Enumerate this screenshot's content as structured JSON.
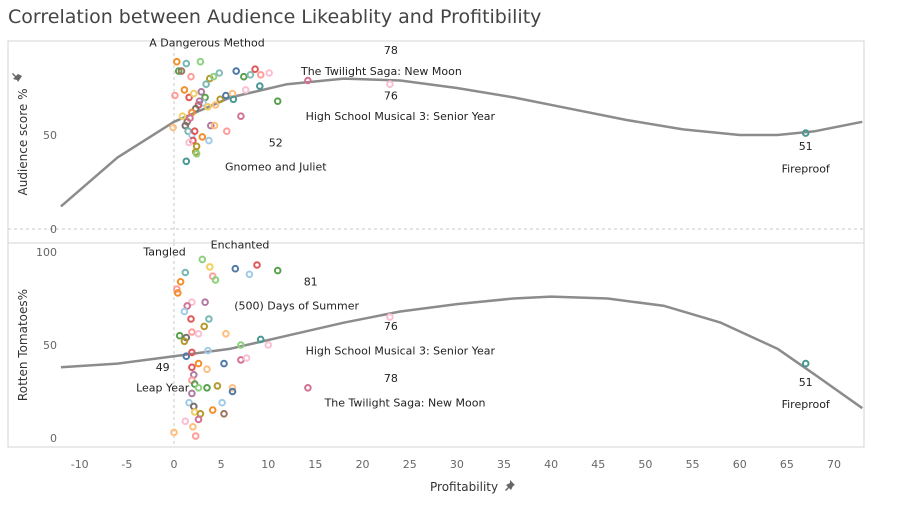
{
  "title": "Correlation between Audience Likeablity and Profitibility",
  "x_axis": {
    "label": "Profitability",
    "pin_icon": "pin-icon"
  },
  "chart_data": [
    {
      "type": "scatter",
      "panel": "top",
      "ylabel": "Audience  score %",
      "xlim": [
        -12,
        73
      ],
      "ylim": [
        -10,
        100
      ],
      "x_ticks": [
        -10,
        -5,
        0,
        5,
        10,
        15,
        20,
        25,
        30,
        35,
        40,
        45,
        50,
        55,
        60,
        65,
        70
      ],
      "y_ticks": [
        0,
        50
      ],
      "trend_curve": [
        {
          "x": -12,
          "y": 12
        },
        {
          "x": -6,
          "y": 38
        },
        {
          "x": 0,
          "y": 57
        },
        {
          "x": 6,
          "y": 70
        },
        {
          "x": 12,
          "y": 77
        },
        {
          "x": 18,
          "y": 80
        },
        {
          "x": 24,
          "y": 79
        },
        {
          "x": 30,
          "y": 75
        },
        {
          "x": 36,
          "y": 70
        },
        {
          "x": 42,
          "y": 64
        },
        {
          "x": 48,
          "y": 58
        },
        {
          "x": 54,
          "y": 53
        },
        {
          "x": 60,
          "y": 50
        },
        {
          "x": 64,
          "y": 50
        },
        {
          "x": 68,
          "y": 52
        },
        {
          "x": 73,
          "y": 57
        }
      ],
      "points": [
        {
          "x": 0.3,
          "y": 89,
          "c": "#f28e2b"
        },
        {
          "x": 0.5,
          "y": 84,
          "c": "#59a14f"
        },
        {
          "x": 1.3,
          "y": 88,
          "c": "#76b7b2"
        },
        {
          "x": 2.8,
          "y": 89,
          "c": "#8cd17d"
        },
        {
          "x": 0.8,
          "y": 84,
          "c": "#9d7660"
        },
        {
          "x": 1.8,
          "y": 81,
          "c": "#ff9d9a"
        },
        {
          "x": 3.8,
          "y": 80,
          "c": "#b6992d"
        },
        {
          "x": 4.2,
          "y": 81,
          "c": "#8cd17d"
        },
        {
          "x": 4.8,
          "y": 83,
          "c": "#86bcb6"
        },
        {
          "x": 3.4,
          "y": 77,
          "c": "#76b7b2"
        },
        {
          "x": 6.6,
          "y": 84,
          "c": "#4e79a7"
        },
        {
          "x": 7.4,
          "y": 81,
          "c": "#59a14f"
        },
        {
          "x": 8.1,
          "y": 82,
          "c": "#86bcb6"
        },
        {
          "x": 8.6,
          "y": 85,
          "c": "#e15759"
        },
        {
          "x": 9.2,
          "y": 82,
          "c": "#ff9d9a"
        },
        {
          "x": 10.1,
          "y": 83,
          "c": "#fabfd2"
        },
        {
          "x": 1.1,
          "y": 74,
          "c": "#f28e2b"
        },
        {
          "x": 1.6,
          "y": 70,
          "c": "#e15759"
        },
        {
          "x": 2.1,
          "y": 72,
          "c": "#f1ce63"
        },
        {
          "x": 2.9,
          "y": 73,
          "c": "#b07aa1"
        },
        {
          "x": 3.3,
          "y": 70,
          "c": "#59a14f"
        },
        {
          "x": 3.1,
          "y": 67,
          "c": "#a0cbe8"
        },
        {
          "x": 2.6,
          "y": 66,
          "c": "#e15759"
        },
        {
          "x": 2.3,
          "y": 64,
          "c": "#79706e"
        },
        {
          "x": 1.9,
          "y": 62,
          "c": "#f28e2b"
        },
        {
          "x": 2.7,
          "y": 68,
          "c": "#b07aa1"
        },
        {
          "x": 3.6,
          "y": 65,
          "c": "#f1ce63"
        },
        {
          "x": 4.4,
          "y": 66,
          "c": "#ffbe7d"
        },
        {
          "x": 4.9,
          "y": 69,
          "c": "#b6992d"
        },
        {
          "x": 5.5,
          "y": 71,
          "c": "#4e79a7"
        },
        {
          "x": 6.2,
          "y": 72,
          "c": "#ffbe7d"
        },
        {
          "x": 6.3,
          "y": 69,
          "c": "#499894"
        },
        {
          "x": 7.6,
          "y": 74,
          "c": "#fabfd2"
        },
        {
          "x": 9.1,
          "y": 76,
          "c": "#499894"
        },
        {
          "x": 11.0,
          "y": 68,
          "c": "#59a14f"
        },
        {
          "x": 0.1,
          "y": 71,
          "c": "#ff9d9a"
        },
        {
          "x": 1.4,
          "y": 57,
          "c": "#9d7660"
        },
        {
          "x": 1.7,
          "y": 59,
          "c": "#d37295"
        },
        {
          "x": 1.2,
          "y": 55,
          "c": "#79706e"
        },
        {
          "x": 1.5,
          "y": 52,
          "c": "#76b7b2"
        },
        {
          "x": 1.9,
          "y": 50,
          "c": "#a0cbe8"
        },
        {
          "x": 2.2,
          "y": 52,
          "c": "#e15759"
        },
        {
          "x": 2.0,
          "y": 47,
          "c": "#e15759"
        },
        {
          "x": 3.0,
          "y": 49,
          "c": "#f28e2b"
        },
        {
          "x": 2.4,
          "y": 44,
          "c": "#b6992d"
        },
        {
          "x": 1.6,
          "y": 46,
          "c": "#fabfd2"
        },
        {
          "x": 3.7,
          "y": 47,
          "c": "#a0cbe8"
        },
        {
          "x": 3.9,
          "y": 55,
          "c": "#b07aa1"
        },
        {
          "x": 4.3,
          "y": 55,
          "c": "#ffbe7d"
        },
        {
          "x": 5.6,
          "y": 52,
          "c": "#ff9d9a"
        },
        {
          "x": 7.1,
          "y": 60,
          "c": "#d37295"
        },
        {
          "x": 2.3,
          "y": 41,
          "c": "#b6992d"
        },
        {
          "x": 2.4,
          "y": 40,
          "c": "#8cd17d"
        },
        {
          "x": 1.3,
          "y": 36,
          "c": "#499894"
        },
        {
          "x": -0.1,
          "y": 54,
          "c": "#ffbe7d"
        },
        {
          "x": 0.9,
          "y": 60,
          "c": "#f1ce63"
        },
        {
          "x": 14.2,
          "y": 79,
          "c": "#d37295"
        },
        {
          "x": 22.9,
          "y": 77,
          "c": "#fabfd2"
        },
        {
          "x": 67,
          "y": 51,
          "c": "#499894"
        }
      ],
      "annotations": [
        {
          "x": 3.5,
          "y": 97,
          "lines": [
            "A Dangerous Method"
          ]
        },
        {
          "x": 23.0,
          "y": 93,
          "lines": [
            "78"
          ]
        },
        {
          "x": 22.0,
          "y": 82,
          "lines": [
            "The Twilight Saga: New Moon"
          ]
        },
        {
          "x": 23.0,
          "y": 69,
          "lines": [
            "76"
          ]
        },
        {
          "x": 24.0,
          "y": 58,
          "lines": [
            "High School Musical 3: Senior Year"
          ]
        },
        {
          "x": 10.8,
          "y": 44,
          "lines": [
            "52"
          ]
        },
        {
          "x": 10.8,
          "y": 31,
          "lines": [
            "Gnomeo and Juliet"
          ]
        },
        {
          "x": 67,
          "y": 42,
          "lines": [
            "51"
          ]
        },
        {
          "x": 67,
          "y": 30,
          "lines": [
            "Fireproof"
          ]
        }
      ]
    },
    {
      "type": "scatter",
      "panel": "bottom",
      "ylabel": "Rotten Tomatoes%",
      "xlim": [
        -12,
        73
      ],
      "ylim": [
        -5,
        100
      ],
      "x_ticks": [
        -10,
        -5,
        0,
        5,
        10,
        15,
        20,
        25,
        30,
        35,
        40,
        45,
        50,
        55,
        60,
        65,
        70
      ],
      "y_ticks": [
        0,
        50,
        100
      ],
      "trend_curve": [
        {
          "x": -12,
          "y": 38
        },
        {
          "x": -6,
          "y": 40
        },
        {
          "x": 0,
          "y": 44
        },
        {
          "x": 6,
          "y": 48
        },
        {
          "x": 12,
          "y": 55
        },
        {
          "x": 18,
          "y": 62
        },
        {
          "x": 24,
          "y": 68
        },
        {
          "x": 30,
          "y": 72
        },
        {
          "x": 36,
          "y": 75
        },
        {
          "x": 40,
          "y": 76
        },
        {
          "x": 46,
          "y": 75
        },
        {
          "x": 52,
          "y": 71
        },
        {
          "x": 58,
          "y": 62
        },
        {
          "x": 64,
          "y": 48
        },
        {
          "x": 68,
          "y": 34
        },
        {
          "x": 73,
          "y": 16
        }
      ],
      "points": [
        {
          "x": 3.0,
          "y": 96,
          "c": "#8cd17d"
        },
        {
          "x": 3.8,
          "y": 92,
          "c": "#f1ce63"
        },
        {
          "x": 6.5,
          "y": 91,
          "c": "#4e79a7"
        },
        {
          "x": 8.8,
          "y": 93,
          "c": "#e15759"
        },
        {
          "x": 11.0,
          "y": 90,
          "c": "#59a14f"
        },
        {
          "x": 8.0,
          "y": 88,
          "c": "#a0cbe8"
        },
        {
          "x": 1.2,
          "y": 89,
          "c": "#76b7b2"
        },
        {
          "x": 4.1,
          "y": 87,
          "c": "#ff9d9a"
        },
        {
          "x": 4.4,
          "y": 85,
          "c": "#8cd17d"
        },
        {
          "x": 0.7,
          "y": 84,
          "c": "#f28e2b"
        },
        {
          "x": 0.3,
          "y": 80,
          "c": "#ff9d9a"
        },
        {
          "x": 0.4,
          "y": 78,
          "c": "#f28e2b"
        },
        {
          "x": 1.9,
          "y": 73,
          "c": "#fabfd2"
        },
        {
          "x": 1.4,
          "y": 71,
          "c": "#d37295"
        },
        {
          "x": 3.3,
          "y": 73,
          "c": "#b07aa1"
        },
        {
          "x": 1.1,
          "y": 68,
          "c": "#a0cbe8"
        },
        {
          "x": 1.8,
          "y": 64,
          "c": "#e15759"
        },
        {
          "x": 3.7,
          "y": 64,
          "c": "#76b7b2"
        },
        {
          "x": 3.2,
          "y": 60,
          "c": "#b6992d"
        },
        {
          "x": 1.9,
          "y": 57,
          "c": "#ff9d9a"
        },
        {
          "x": 0.6,
          "y": 55,
          "c": "#59a14f"
        },
        {
          "x": 1.3,
          "y": 54,
          "c": "#79706e"
        },
        {
          "x": 1.1,
          "y": 52,
          "c": "#b6992d"
        },
        {
          "x": 2.6,
          "y": 56,
          "c": "#fabfd2"
        },
        {
          "x": 5.5,
          "y": 56,
          "c": "#ffbe7d"
        },
        {
          "x": 7.1,
          "y": 50,
          "c": "#8cd17d"
        },
        {
          "x": 9.2,
          "y": 53,
          "c": "#499894"
        },
        {
          "x": 10.0,
          "y": 50,
          "c": "#fabfd2"
        },
        {
          "x": 3.6,
          "y": 47,
          "c": "#a0cbe8"
        },
        {
          "x": 1.3,
          "y": 44,
          "c": "#4e79a7"
        },
        {
          "x": 1.9,
          "y": 46,
          "c": "#e15759"
        },
        {
          "x": 7.1,
          "y": 42,
          "c": "#d37295"
        },
        {
          "x": 7.7,
          "y": 43,
          "c": "#fabfd2"
        },
        {
          "x": 5.3,
          "y": 40,
          "c": "#4e79a7"
        },
        {
          "x": 2.6,
          "y": 40,
          "c": "#f28e2b"
        },
        {
          "x": 1.9,
          "y": 38,
          "c": "#e15759"
        },
        {
          "x": 3.5,
          "y": 37,
          "c": "#ffbe7d"
        },
        {
          "x": 2.1,
          "y": 34,
          "c": "#b07aa1"
        },
        {
          "x": 1.9,
          "y": 31,
          "c": "#ff9d9a"
        },
        {
          "x": 2.2,
          "y": 29,
          "c": "#59a14f"
        },
        {
          "x": 2.6,
          "y": 27,
          "c": "#8cd17d"
        },
        {
          "x": 3.5,
          "y": 27,
          "c": "#59a14f"
        },
        {
          "x": 4.6,
          "y": 28,
          "c": "#b6992d"
        },
        {
          "x": 6.2,
          "y": 27,
          "c": "#ffbe7d"
        },
        {
          "x": 6.2,
          "y": 25,
          "c": "#4e79a7"
        },
        {
          "x": 1.9,
          "y": 24,
          "c": "#b07aa1"
        },
        {
          "x": 1.6,
          "y": 19,
          "c": "#a0cbe8"
        },
        {
          "x": 2.1,
          "y": 17,
          "c": "#79706e"
        },
        {
          "x": 2.2,
          "y": 14,
          "c": "#f1ce63"
        },
        {
          "x": 2.8,
          "y": 13,
          "c": "#b6992d"
        },
        {
          "x": 4.1,
          "y": 15,
          "c": "#f28e2b"
        },
        {
          "x": 5.1,
          "y": 19,
          "c": "#a0cbe8"
        },
        {
          "x": 5.3,
          "y": 13,
          "c": "#9d7660"
        },
        {
          "x": 1.2,
          "y": 9,
          "c": "#fabfd2"
        },
        {
          "x": 2.0,
          "y": 6,
          "c": "#ffbe7d"
        },
        {
          "x": 2.3,
          "y": 1,
          "c": "#ff9d9a"
        },
        {
          "x": 2.6,
          "y": 10,
          "c": "#d37295"
        },
        {
          "x": 0.0,
          "y": 3,
          "c": "#ffbe7d"
        },
        {
          "x": 14.2,
          "y": 27,
          "c": "#d37295"
        },
        {
          "x": 22.9,
          "y": 65,
          "c": "#fabfd2"
        },
        {
          "x": 67,
          "y": 40,
          "c": "#499894"
        }
      ],
      "annotations": [
        {
          "x": 7.0,
          "y": 102,
          "lines": [
            "Enchanted"
          ]
        },
        {
          "x": -1.0,
          "y": 98,
          "lines": [
            "Tangled"
          ]
        },
        {
          "x": 14.5,
          "y": 82,
          "lines": [
            "81"
          ]
        },
        {
          "x": 13.0,
          "y": 69,
          "lines": [
            "(500) Days of Summer"
          ]
        },
        {
          "x": 23.0,
          "y": 58,
          "lines": [
            "76"
          ]
        },
        {
          "x": 24.0,
          "y": 45,
          "lines": [
            "High School Musical 3: Senior Year"
          ]
        },
        {
          "x": -1.2,
          "y": 36,
          "lines": [
            "49"
          ]
        },
        {
          "x": -1.2,
          "y": 25,
          "lines": [
            "Leap Year"
          ]
        },
        {
          "x": 23.0,
          "y": 30,
          "lines": [
            "78"
          ]
        },
        {
          "x": 24.5,
          "y": 17,
          "lines": [
            "The Twilight Saga: New Moon"
          ]
        },
        {
          "x": 67,
          "y": 28,
          "lines": [
            "51"
          ]
        },
        {
          "x": 67,
          "y": 16,
          "lines": [
            "Fireproof"
          ]
        }
      ]
    }
  ]
}
